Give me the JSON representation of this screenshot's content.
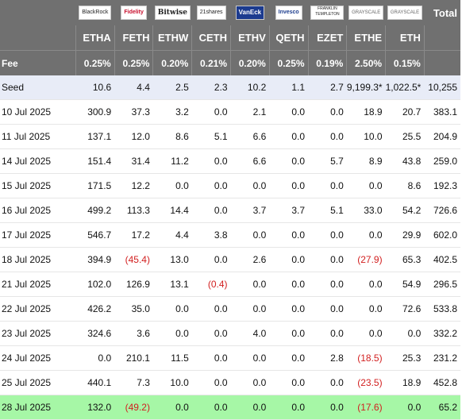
{
  "header": {
    "total_label": "Total",
    "logos": [
      {
        "name": "blackrock-logo",
        "text": "BlackRock"
      },
      {
        "name": "fidelity-logo",
        "text": "Fidelity"
      },
      {
        "name": "bitwise-logo",
        "text": "Bitwise"
      },
      {
        "name": "21shares-logo",
        "text": "21shares"
      },
      {
        "name": "vaneck-logo",
        "text": "VanEck"
      },
      {
        "name": "invesco-logo",
        "text": "Invesco"
      },
      {
        "name": "franklin-logo",
        "text": "FRANKLIN TEMPLETON"
      },
      {
        "name": "grayscale-logo-1",
        "text": "GRAYSCALE"
      },
      {
        "name": "grayscale-logo-2",
        "text": "GRAYSCALE"
      }
    ],
    "tickers": [
      "ETHA",
      "FETH",
      "ETHW",
      "CETH",
      "ETHV",
      "QETH",
      "EZET",
      "ETHE",
      "ETH"
    ],
    "fee_label": "Fee",
    "fees": [
      "0.25%",
      "0.25%",
      "0.20%",
      "0.21%",
      "0.20%",
      "0.25%",
      "0.19%",
      "2.50%",
      "0.15%"
    ]
  },
  "colors": {
    "header_bg": "#707070",
    "seed_bg": "#e8ecf7",
    "alt_bg": "#f2f2f2",
    "highlight_bg": "#a6f7a6",
    "negative": "#d21f1f"
  },
  "rows": [
    {
      "label": "Seed",
      "values": [
        "10.6",
        "4.4",
        "2.5",
        "2.3",
        "10.2",
        "1.1",
        "2.7",
        "9,199.3*",
        "1,022.5*"
      ],
      "total": "10,255"
    },
    {
      "label": "10 Jul 2025",
      "values": [
        "300.9",
        "37.3",
        "3.2",
        "0.0",
        "2.1",
        "0.0",
        "0.0",
        "18.9",
        "20.7"
      ],
      "total": "383.1"
    },
    {
      "label": "11 Jul 2025",
      "values": [
        "137.1",
        "12.0",
        "8.6",
        "5.1",
        "6.6",
        "0.0",
        "0.0",
        "10.0",
        "25.5"
      ],
      "total": "204.9"
    },
    {
      "label": "14 Jul 2025",
      "values": [
        "151.4",
        "31.4",
        "11.2",
        "0.0",
        "6.6",
        "0.0",
        "5.7",
        "8.9",
        "43.8"
      ],
      "total": "259.0"
    },
    {
      "label": "15 Jul 2025",
      "values": [
        "171.5",
        "12.2",
        "0.0",
        "0.0",
        "0.0",
        "0.0",
        "0.0",
        "0.0",
        "8.6"
      ],
      "total": "192.3"
    },
    {
      "label": "16 Jul 2025",
      "values": [
        "499.2",
        "113.3",
        "14.4",
        "0.0",
        "3.7",
        "3.7",
        "5.1",
        "33.0",
        "54.2"
      ],
      "total": "726.6"
    },
    {
      "label": "17 Jul 2025",
      "values": [
        "546.7",
        "17.2",
        "4.4",
        "3.8",
        "0.0",
        "0.0",
        "0.0",
        "0.0",
        "29.9"
      ],
      "total": "602.0"
    },
    {
      "label": "18 Jul 2025",
      "values": [
        "394.9",
        "(45.4)",
        "13.0",
        "0.0",
        "2.6",
        "0.0",
        "0.0",
        "(27.9)",
        "65.3"
      ],
      "total": "402.5"
    },
    {
      "label": "21 Jul 2025",
      "values": [
        "102.0",
        "126.9",
        "13.1",
        "(0.4)",
        "0.0",
        "0.0",
        "0.0",
        "0.0",
        "54.9"
      ],
      "total": "296.5"
    },
    {
      "label": "22 Jul 2025",
      "values": [
        "426.2",
        "35.0",
        "0.0",
        "0.0",
        "0.0",
        "0.0",
        "0.0",
        "0.0",
        "72.6"
      ],
      "total": "533.8"
    },
    {
      "label": "23 Jul 2025",
      "values": [
        "324.6",
        "3.6",
        "0.0",
        "0.0",
        "4.0",
        "0.0",
        "0.0",
        "0.0",
        "0.0"
      ],
      "total": "332.2"
    },
    {
      "label": "24 Jul 2025",
      "values": [
        "0.0",
        "210.1",
        "11.5",
        "0.0",
        "0.0",
        "0.0",
        "2.8",
        "(18.5)",
        "25.3"
      ],
      "total": "231.2"
    },
    {
      "label": "25 Jul 2025",
      "values": [
        "440.1",
        "7.3",
        "10.0",
        "0.0",
        "0.0",
        "0.0",
        "0.0",
        "(23.5)",
        "18.9"
      ],
      "total": "452.8"
    },
    {
      "label": "28 Jul 2025",
      "values": [
        "132.0",
        "(49.2)",
        "0.0",
        "0.0",
        "0.0",
        "0.0",
        "0.0",
        "(17.6)",
        "0.0"
      ],
      "total": "65.2"
    }
  ]
}
